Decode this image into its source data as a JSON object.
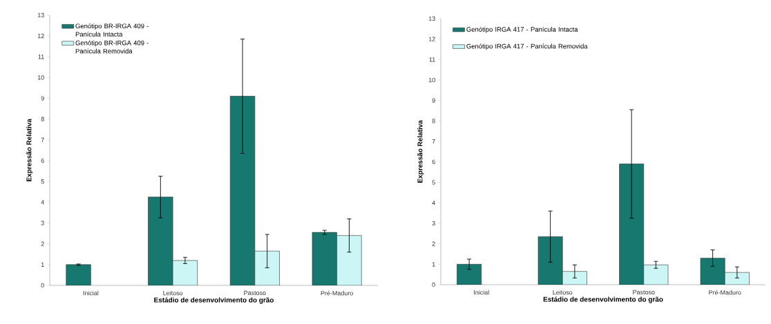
{
  "chart_data": [
    {
      "type": "bar",
      "categories": [
        "Inicial",
        "Leitoso",
        "Pastoso",
        "Pré-Maduro"
      ],
      "xlabel": "Estádio de desenvolvimento do grão",
      "ylabel": "Expressão Relativa",
      "ylim": [
        0,
        13
      ],
      "yticks": [
        0,
        1,
        2,
        3,
        4,
        5,
        6,
        7,
        8,
        9,
        10,
        11,
        12,
        13
      ],
      "grid": false,
      "legend": "top left",
      "series": [
        {
          "name": "Genótipo BR-IRGA 409 - Panícula Intacta",
          "color": "#16786e",
          "values": [
            1.0,
            4.25,
            9.1,
            2.55
          ],
          "errors": [
            0.03,
            1.0,
            2.75,
            0.1
          ]
        },
        {
          "name": "Genótipo BR-IRGA 409 - Panícula Removida",
          "color": "#ccf6f6",
          "values": [
            null,
            1.2,
            1.65,
            2.4
          ],
          "errors": [
            null,
            0.15,
            0.8,
            0.8
          ]
        }
      ]
    },
    {
      "type": "bar",
      "categories": [
        "Inicial",
        "Leitoso",
        "Pastoso",
        "Pré-Maduro"
      ],
      "xlabel": "Estádio de desenvolvimento do grão",
      "ylabel": "Expressão Relativa",
      "ylim": [
        0,
        13
      ],
      "yticks": [
        0,
        1,
        2,
        3,
        4,
        5,
        6,
        7,
        8,
        9,
        10,
        11,
        12,
        13
      ],
      "grid": false,
      "legend": "top left",
      "series": [
        {
          "name": "Genótipo IRGA 417 - Panícula Intacta",
          "color": "#16786e",
          "values": [
            1.0,
            2.35,
            5.9,
            1.3
          ],
          "errors": [
            0.25,
            1.25,
            2.65,
            0.4
          ]
        },
        {
          "name": "Genótipo IRGA 417 - Panícula Removida",
          "color": "#ccf6f6",
          "values": [
            null,
            0.65,
            0.97,
            0.6
          ],
          "errors": [
            null,
            0.32,
            0.17,
            0.27
          ]
        }
      ]
    }
  ]
}
